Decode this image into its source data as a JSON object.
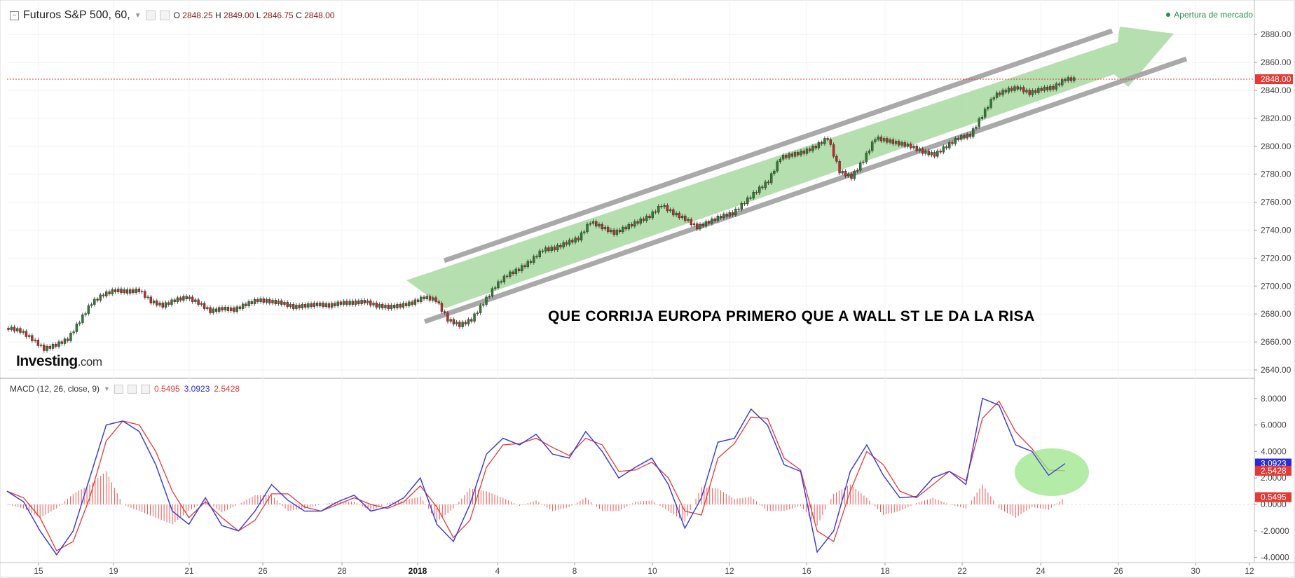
{
  "header": {
    "title": "Futuros S&P 500, 60,",
    "ohlc": {
      "o_label": "O",
      "o": "2848.25",
      "h_label": "H",
      "h": "2849.00",
      "l_label": "L",
      "l": "2846.75",
      "c_label": "C",
      "c": "2848.00"
    },
    "status": "Apertura de mercado"
  },
  "logo": {
    "name": "Investing",
    "suffix": ".com"
  },
  "caption": "QUE CORRIJA EUROPA PRIMERO QUE A WALL ST LE DA LA RISA",
  "macd_header": {
    "label": "MACD (12, 26, close, 9)",
    "histogram": "0.5495",
    "macd": "3.0923",
    "signal": "2.5428"
  },
  "colors": {
    "up": "#2e7d32",
    "down": "#c62828",
    "channel_fill": "#a8d9a0",
    "channel_lines": "#a9a9a9",
    "macd_line": "#3a3ae0",
    "signal_line": "#e53935",
    "histogram": "#ef5350",
    "price_line": "#e53935",
    "highlight_circle": "#9be58a"
  },
  "chart_data": [
    {
      "type": "line",
      "title": "Futuros S&P 500, 60,",
      "x_tick_labels": [
        "15",
        "19",
        "21",
        "26",
        "28",
        "2018",
        "4",
        "8",
        "10",
        "12",
        "16",
        "18",
        "22",
        "24",
        "26",
        "30",
        "12"
      ],
      "y_tick_labels": [
        "2640.00",
        "2660.00",
        "2680.00",
        "2700.00",
        "2720.00",
        "2740.00",
        "2760.00",
        "2780.00",
        "2800.00",
        "2820.00",
        "2840.00",
        "2860.00",
        "2880.00"
      ],
      "ylim": [
        2630,
        2895
      ],
      "current_price": "2848.00",
      "series": [
        {
          "values": [
            2670,
            2668,
            2662,
            2655,
            2658,
            2662,
            2675,
            2688,
            2694,
            2697,
            2696,
            2697,
            2689,
            2686,
            2690,
            2692,
            2688,
            2682,
            2684,
            2683,
            2687,
            2690,
            2689,
            2688,
            2685,
            2686,
            2687,
            2686,
            2688,
            2688,
            2689,
            2686,
            2685,
            2686,
            2688,
            2692,
            2690,
            2676,
            2672,
            2676,
            2688,
            2700,
            2708,
            2712,
            2718,
            2726,
            2727,
            2731,
            2734,
            2746,
            2742,
            2738,
            2742,
            2746,
            2750,
            2758,
            2752,
            2748,
            2742,
            2746,
            2750,
            2752,
            2760,
            2768,
            2775,
            2792,
            2794,
            2796,
            2800,
            2806,
            2782,
            2778,
            2790,
            2806,
            2804,
            2802,
            2800,
            2796,
            2794,
            2800,
            2806,
            2808,
            2822,
            2836,
            2840,
            2842,
            2838,
            2841,
            2842,
            2848
          ]
        }
      ],
      "annotations": [
        "QUE CORRIJA EUROPA PRIMERO QUE A WALL ST LE DA LA RISA"
      ]
    },
    {
      "type": "line",
      "title": "MACD (12, 26, close, 9)",
      "y_tick_labels": [
        "-4.0000",
        "-2.0000",
        "0.0000",
        "2.0000",
        "4.0000",
        "6.0000",
        "8.0000"
      ],
      "ylim": [
        -4.6,
        9.0
      ],
      "last_values": {
        "macd": "3.0923",
        "signal": "2.5428",
        "histogram": "0.5495"
      },
      "series": [
        {
          "name": "MACD",
          "values": [
            1.0,
            0.2,
            -2.0,
            -3.8,
            -2.0,
            2.0,
            6.0,
            6.3,
            5.5,
            3.0,
            -0.5,
            -1.5,
            0.5,
            -1.6,
            -2.0,
            -0.5,
            1.5,
            0.3,
            -0.5,
            -0.5,
            0.2,
            0.7,
            -0.5,
            -0.2,
            0.5,
            2.0,
            -1.5,
            -2.8,
            0.0,
            3.8,
            5.0,
            4.5,
            5.3,
            3.8,
            3.5,
            5.5,
            4.0,
            2.0,
            2.8,
            3.5,
            1.5,
            -1.8,
            0.5,
            4.7,
            5.0,
            7.2,
            6.0,
            3.0,
            2.5,
            -3.6,
            -2.0,
            2.5,
            4.5,
            2.2,
            0.5,
            0.6,
            2.0,
            2.5,
            1.5,
            8.0,
            7.5,
            4.5,
            4.0,
            2.2,
            3.09
          ]
        },
        {
          "name": "Signal",
          "values": [
            1.0,
            0.5,
            -1.0,
            -3.5,
            -2.8,
            0.5,
            4.8,
            6.3,
            6.0,
            4.0,
            1.0,
            -1.0,
            0.2,
            -1.0,
            -2.0,
            -1.2,
            0.8,
            0.8,
            -0.2,
            -0.5,
            0.0,
            0.5,
            0.0,
            -0.3,
            0.2,
            1.4,
            -0.2,
            -2.5,
            -1.2,
            2.8,
            4.5,
            4.6,
            5.0,
            4.3,
            3.7,
            5.0,
            4.5,
            2.5,
            2.6,
            3.2,
            2.0,
            -0.5,
            -0.8,
            3.5,
            4.6,
            6.6,
            6.5,
            3.5,
            2.6,
            -2.0,
            -2.8,
            1.0,
            4.0,
            3.0,
            1.0,
            0.5,
            1.5,
            2.5,
            1.8,
            6.5,
            7.8,
            5.5,
            4.2,
            2.6,
            2.54
          ]
        },
        {
          "name": "Histogram",
          "values": [
            0.0,
            -0.3,
            -1.0,
            -0.3,
            0.8,
            1.5,
            2.5,
            0.0,
            -0.5,
            -1.0,
            -1.5,
            -0.5,
            0.3,
            -0.6,
            0.0,
            0.7,
            0.7,
            -0.5,
            -0.3,
            0.0,
            0.2,
            0.2,
            -0.5,
            0.1,
            0.3,
            0.6,
            -1.3,
            -0.3,
            1.2,
            1.0,
            0.5,
            -0.1,
            0.3,
            -0.5,
            -0.2,
            0.5,
            -0.5,
            -0.5,
            0.2,
            0.3,
            -0.5,
            -1.3,
            1.3,
            1.2,
            0.4,
            0.6,
            -0.5,
            -0.5,
            -0.1,
            -1.6,
            0.8,
            1.5,
            0.5,
            -0.8,
            -0.5,
            0.1,
            0.5,
            0.0,
            -0.3,
            1.5,
            -0.3,
            -1.0,
            -0.2,
            -0.4,
            0.55
          ]
        }
      ]
    }
  ]
}
